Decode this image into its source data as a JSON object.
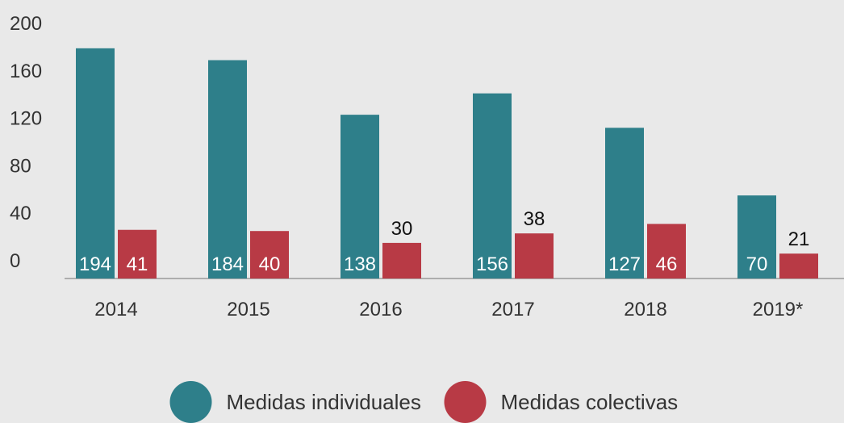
{
  "chart_data": {
    "type": "bar",
    "categories": [
      "2014",
      "2015",
      "2016",
      "2017",
      "2018",
      "2019*"
    ],
    "series": [
      {
        "name": "Medidas individuales",
        "color": "#2e7f8a",
        "values": [
          194,
          184,
          138,
          156,
          127,
          70
        ]
      },
      {
        "name": "Medidas colectivas",
        "color": "#b83a45",
        "values": [
          41,
          40,
          30,
          38,
          46,
          21
        ]
      }
    ],
    "ylim": [
      0,
      200
    ],
    "yticks": [
      0,
      40,
      80,
      120,
      160,
      200
    ],
    "legend": "bottom"
  }
}
